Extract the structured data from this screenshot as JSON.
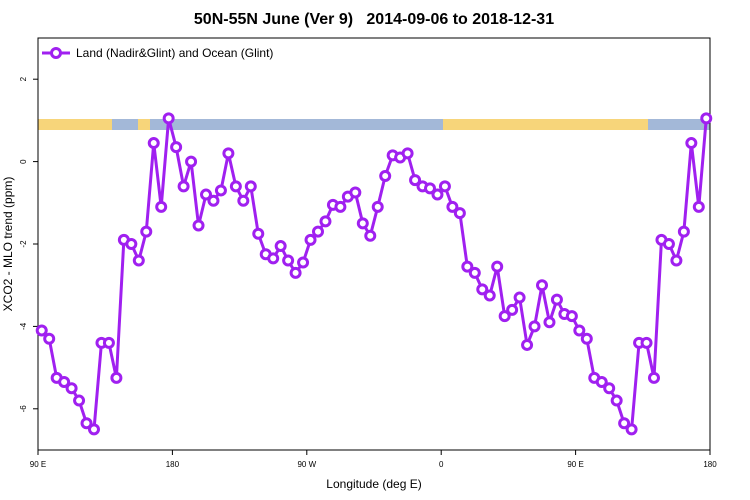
{
  "chart_data": {
    "type": "line",
    "title": "50N-55N June (Ver 9)   2014-09-06 to 2018-12-31",
    "xlabel": "Longitude (deg E)",
    "ylabel": "XCO2 - MLO trend (ppm)",
    "x": [
      92.5,
      97.5,
      102.5,
      107.5,
      112.5,
      117.5,
      122.5,
      127.5,
      132.5,
      137.5,
      142.5,
      147.5,
      152.5,
      157.5,
      162.5,
      167.5,
      172.5,
      177.5,
      182.5,
      187.5,
      192.5,
      197.5,
      202.5,
      207.5,
      212.5,
      217.5,
      222.5,
      227.5,
      232.5,
      237.5,
      242.5,
      247.5,
      252.5,
      257.5,
      262.5,
      267.5,
      272.5,
      277.5,
      282.5,
      287.5,
      292.5,
      297.5,
      302.5,
      307.5,
      312.5,
      317.5,
      322.5,
      327.5,
      332.5,
      337.5,
      342.5,
      347.5,
      352.5,
      357.5,
      362.5,
      367.5,
      372.5,
      377.5,
      382.5,
      387.5,
      392.5,
      397.5,
      402.5,
      407.5,
      412.5,
      417.5,
      422.5,
      427.5,
      432.5,
      437.5,
      442.5,
      447.5,
      452.5,
      457.5,
      462.5,
      467.5,
      472.5,
      477.5,
      482.5,
      487.5,
      492.5,
      497.5,
      502.5,
      507.5,
      512.5,
      517.5,
      522.5,
      527.5,
      532.5,
      537.5
    ],
    "series": [
      {
        "name": "Land (Nadir&Glint) and Ocean (Glint)",
        "color": "#a020f0",
        "values": [
          -4.1,
          -4.3,
          -5.25,
          -5.35,
          -5.5,
          -5.8,
          -6.35,
          -6.5,
          -4.4,
          -4.4,
          -5.25,
          -1.9,
          -2.0,
          -2.4,
          -1.7,
          0.45,
          -1.1,
          1.05,
          0.35,
          -0.6,
          0.0,
          -1.55,
          -0.8,
          -0.95,
          -0.7,
          0.2,
          -0.6,
          -0.95,
          -0.6,
          -1.75,
          -2.25,
          -2.35,
          -2.05,
          -2.4,
          -2.7,
          -2.45,
          -1.9,
          -1.7,
          -1.45,
          -1.05,
          -1.1,
          -0.85,
          -0.75,
          -1.5,
          -1.8,
          -1.1,
          -0.35,
          0.15,
          0.1,
          0.2,
          -0.45,
          -0.6,
          -0.65,
          -0.8,
          -0.6,
          -1.1,
          -1.25,
          -2.55,
          -2.7,
          -3.1,
          -3.25,
          -2.55,
          -3.75,
          -3.6,
          -3.3,
          -4.45,
          -4.0,
          -3.0,
          -3.9,
          -3.35,
          -3.7,
          -3.75,
          -4.1,
          -4.3,
          -5.25,
          -5.35,
          -5.5,
          -5.8,
          -6.35,
          -6.5,
          -4.4,
          -4.4,
          -5.25,
          -1.9,
          -2.0,
          -2.4,
          -1.7,
          0.45,
          -1.1,
          1.05
        ]
      }
    ],
    "xlim": [
      90,
      540
    ],
    "xticks": [
      {
        "value": 90,
        "label": "90 E"
      },
      180,
      {
        "value": 270,
        "label": "90 W"
      },
      {
        "value": 360,
        "label": "0"
      },
      {
        "value": 450,
        "label": "90 E"
      },
      {
        "value": 540,
        "label": "180"
      }
    ],
    "ylim": [
      -7,
      3
    ],
    "yticks": [
      -6,
      -4,
      -2,
      0,
      2
    ],
    "legend": "top-left"
  }
}
